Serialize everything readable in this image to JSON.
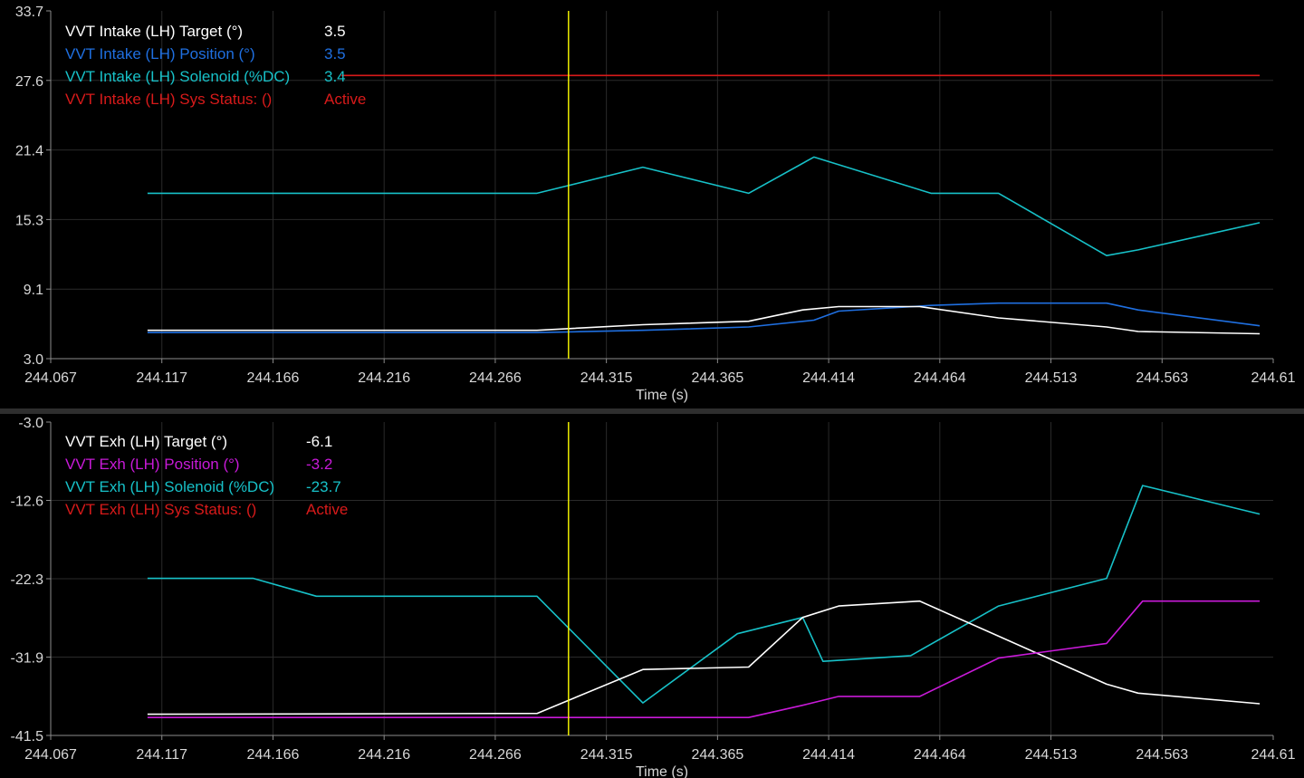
{
  "colors": {
    "background": "#000000",
    "grid": "#2a2a2a",
    "axis": "#8c8c8c",
    "tick_text": "#d8d8d8",
    "cursor": "#ffff00",
    "separator": "#3a3a3a"
  },
  "x_tick_labels": [
    "244.067",
    "244.117",
    "244.166",
    "244.216",
    "244.266",
    "244.315",
    "244.365",
    "244.414",
    "244.464",
    "244.513",
    "244.563",
    "244.61"
  ],
  "chart_data": [
    {
      "type": "line",
      "xlabel": "Time (s)",
      "ylabel": "",
      "xlim": [
        244.067,
        244.61
      ],
      "ylim": [
        3.0,
        33.7
      ],
      "grid": true,
      "legend_position": "top-left",
      "y_tick_labels": [
        "33.7",
        "27.6",
        "21.4",
        "15.3",
        "9.1",
        "3.0"
      ],
      "cursor_x": 244.297,
      "legend": [
        {
          "name": "VVT Intake (LH) Target (°)",
          "value": "3.5",
          "color": "#ffffff"
        },
        {
          "name": "VVT Intake (LH) Position (°)",
          "value": "3.5",
          "color": "#1f6fe0"
        },
        {
          "name": "VVT Intake (LH) Solenoid (%DC)",
          "value": "3.4",
          "color": "#17c1c8"
        },
        {
          "name": "VVT Intake (LH) Sys Status: ()",
          "value": "Active",
          "color": "#d81a1a"
        }
      ],
      "series": [
        {
          "name": "VVT Intake (LH) Solenoid (%DC)",
          "color": "#17c1c8",
          "x": [
            244.11,
            244.283,
            244.33,
            244.377,
            244.406,
            244.458,
            244.488,
            244.536,
            244.55,
            244.604
          ],
          "y": [
            17.6,
            17.6,
            19.9,
            17.6,
            20.8,
            17.6,
            17.6,
            12.1,
            12.6,
            15.0
          ]
        },
        {
          "name": "VVT Intake (LH) Position (°)",
          "color": "#1f6fe0",
          "x": [
            244.11,
            244.283,
            244.33,
            244.377,
            244.406,
            244.417,
            244.458,
            244.488,
            244.536,
            244.55,
            244.604
          ],
          "y": [
            5.3,
            5.3,
            5.5,
            5.8,
            6.4,
            7.2,
            7.7,
            7.9,
            7.9,
            7.3,
            5.9
          ]
        },
        {
          "name": "VVT Intake (LH) Target (°)",
          "color": "#ffffff",
          "x": [
            244.11,
            244.283,
            244.33,
            244.377,
            244.401,
            244.417,
            244.453,
            244.488,
            244.536,
            244.55,
            244.604
          ],
          "y": [
            5.5,
            5.5,
            6.0,
            6.3,
            7.3,
            7.6,
            7.6,
            6.6,
            5.8,
            5.4,
            5.2
          ]
        },
        {
          "name": "VVT Intake (LH) Sys Status: ()",
          "color": "#d81a1a",
          "x": [
            244.196,
            244.604
          ],
          "y": [
            28.0,
            28.0
          ]
        }
      ]
    },
    {
      "type": "line",
      "xlabel": "Time (s)",
      "ylabel": "",
      "xlim": [
        244.067,
        244.61
      ],
      "ylim": [
        -41.5,
        -3.0
      ],
      "grid": true,
      "legend_position": "top-left",
      "y_tick_labels": [
        "-3.0",
        "-12.6",
        "-22.3",
        "-31.9",
        "-41.5"
      ],
      "cursor_x": 244.297,
      "legend": [
        {
          "name": "VVT Exh (LH) Target (°)",
          "value": "-6.1",
          "color": "#ffffff"
        },
        {
          "name": "VVT Exh (LH) Position (°)",
          "value": "-3.2",
          "color": "#c81ad8"
        },
        {
          "name": "VVT Exh (LH) Solenoid (%DC)",
          "value": "-23.7",
          "color": "#17c1c8"
        },
        {
          "name": "VVT Exh (LH) Sys Status: ()",
          "value": "Active",
          "color": "#d81a1a"
        }
      ],
      "series": [
        {
          "name": "VVT Exh (LH) Solenoid (%DC)",
          "color": "#17c1c8",
          "x": [
            244.11,
            244.157,
            244.185,
            244.283,
            244.33,
            244.372,
            244.401,
            244.41,
            244.449,
            244.488,
            244.536,
            244.552,
            244.604
          ],
          "y": [
            -22.2,
            -22.2,
            -24.4,
            -24.4,
            -37.5,
            -29.0,
            -27.0,
            -32.4,
            -31.7,
            -25.6,
            -22.2,
            -10.8,
            -14.3
          ]
        },
        {
          "name": "VVT Exh (LH) Target (°)",
          "color": "#ffffff",
          "x": [
            244.11,
            244.283,
            244.33,
            244.377,
            244.401,
            244.417,
            244.453,
            244.488,
            244.536,
            244.55,
            244.604
          ],
          "y": [
            -38.9,
            -38.8,
            -33.4,
            -33.1,
            -27.0,
            -25.6,
            -25.0,
            -29.3,
            -35.2,
            -36.3,
            -37.6
          ]
        },
        {
          "name": "VVT Exh (LH) Position (°)",
          "color": "#c81ad8",
          "x": [
            244.11,
            244.377,
            244.401,
            244.417,
            244.453,
            244.488,
            244.536,
            244.552,
            244.604
          ],
          "y": [
            -39.3,
            -39.3,
            -37.8,
            -36.7,
            -36.7,
            -32.0,
            -30.2,
            -25.0,
            -25.0
          ]
        }
      ]
    }
  ]
}
